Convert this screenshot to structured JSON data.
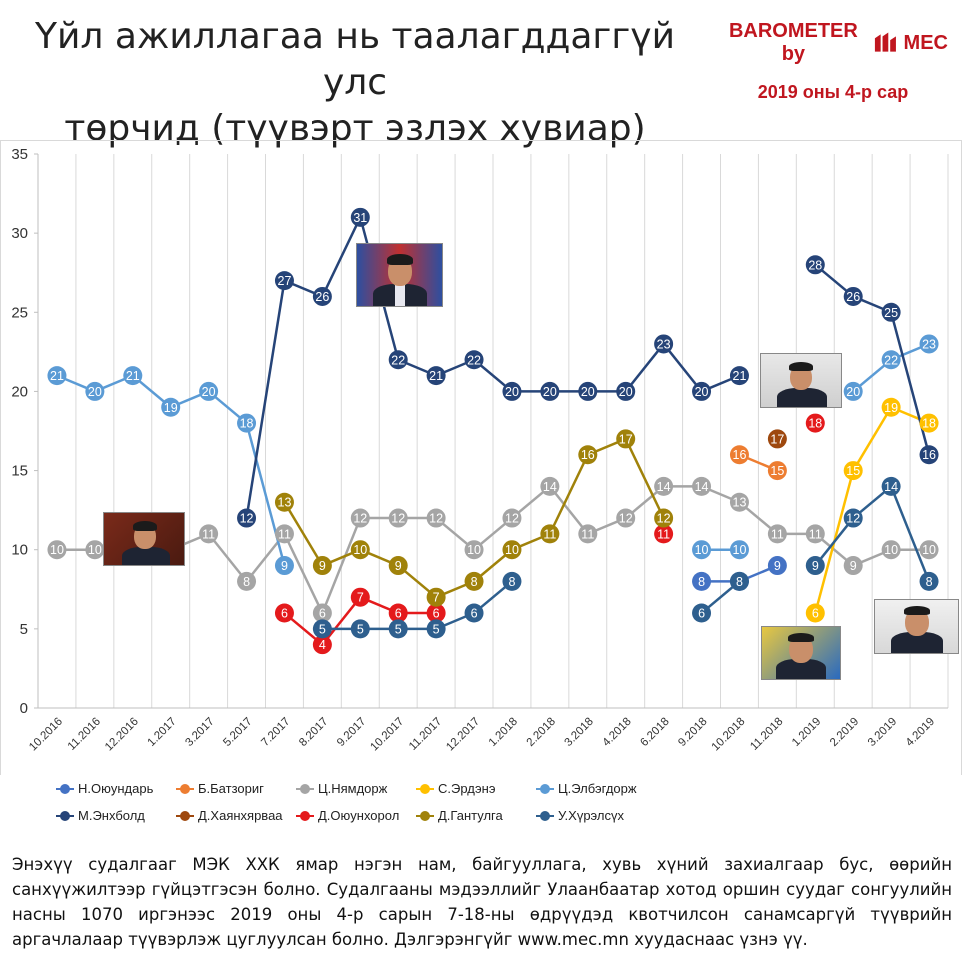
{
  "title_line1": "Үйл ажиллагаа нь таалагддаггүй улс",
  "title_line2": "төрчид (түүвэрт эзлэх хувиар)",
  "brand": "BAROMETER by",
  "brand_mark": "MEC",
  "subtitle": "2019 оны 4-р сар",
  "footnote": "Энэхүү судалгааг МЭК ХХК ямар нэгэн нам, байгууллага, хувь хүний захиалгаар бус, өөрийн санхүүжилтээр гүйцэтгэсэн болно. Судалгааны мэдээллийг Улаанбаатар хотод оршин суудаг сонгуулийн насны 1070 иргэнээс 2019 оны 4-р сарын 7-18-ны өдрүүдэд квотчилсон санамсаргүй түүврийн аргачлалаар түүвэрлэж цуглуулсан болно. Дэлгэрэнгүйг www.mec.mn хуудаснаас үзнэ үү.",
  "chart_data": {
    "type": "line",
    "categories": [
      "10.2016",
      "11.2016",
      "12.2016",
      "1.2017",
      "3.2017",
      "5.2017",
      "7.2017",
      "8.2017",
      "9.2017",
      "10.2017",
      "11.2017",
      "12.2017",
      "1.2018",
      "2.2018",
      "3.2018",
      "4.2018",
      "6.2018",
      "9.2018",
      "10.2018",
      "11.2018",
      "1.2019",
      "2.2019",
      "3.2019",
      "4.2019"
    ],
    "ylim": [
      0,
      35
    ],
    "yticks": [
      0,
      5,
      10,
      15,
      20,
      25,
      30,
      35
    ],
    "grid": "vertical",
    "legend_position": "bottom",
    "series": [
      {
        "name": "Н.Оюундарь",
        "color": "#4472c4",
        "values": [
          null,
          null,
          null,
          null,
          null,
          null,
          null,
          null,
          null,
          null,
          null,
          null,
          null,
          null,
          null,
          null,
          null,
          8,
          8,
          9,
          null,
          null,
          null,
          null
        ]
      },
      {
        "name": "Б.Батзориг",
        "color": "#ed7d31",
        "values": [
          null,
          null,
          null,
          null,
          null,
          null,
          null,
          null,
          null,
          null,
          null,
          null,
          null,
          null,
          null,
          null,
          null,
          null,
          16,
          15,
          null,
          null,
          null,
          null
        ]
      },
      {
        "name": "Ц.Нямдорж",
        "color": "#a5a5a5",
        "values": [
          10,
          10,
          null,
          10,
          11,
          8,
          11,
          6,
          12,
          12,
          12,
          10,
          12,
          14,
          11,
          12,
          14,
          14,
          13,
          11,
          11,
          9,
          10,
          10
        ]
      },
      {
        "name": "С.Эрдэнэ",
        "color": "#ffc000",
        "values": [
          null,
          null,
          null,
          null,
          null,
          null,
          null,
          null,
          null,
          null,
          null,
          null,
          null,
          null,
          null,
          null,
          null,
          null,
          null,
          null,
          6,
          15,
          19,
          18
        ]
      },
      {
        "name": "Ц.Элбэгдорж",
        "color": "#5b9bd5",
        "values": [
          21,
          20,
          21,
          19,
          20,
          18,
          9,
          null,
          null,
          null,
          null,
          null,
          null,
          null,
          null,
          null,
          null,
          10,
          10,
          null,
          null,
          20,
          22,
          23
        ]
      },
      {
        "name": "М.Энхболд",
        "color": "#264478",
        "values": [
          null,
          null,
          null,
          null,
          null,
          12,
          27,
          26,
          31,
          22,
          21,
          22,
          20,
          20,
          20,
          20,
          23,
          20,
          21,
          null,
          28,
          26,
          25,
          16
        ]
      },
      {
        "name": "Д.Хаянхярваа",
        "color": "#9e480e",
        "values": [
          null,
          null,
          null,
          null,
          null,
          null,
          null,
          null,
          null,
          null,
          null,
          null,
          null,
          null,
          null,
          null,
          null,
          null,
          null,
          17,
          null,
          null,
          null,
          null
        ]
      },
      {
        "name": "Д.Оюунхорол",
        "color": "#e41a1c",
        "values": [
          null,
          null,
          null,
          null,
          null,
          null,
          6,
          4,
          7,
          6,
          6,
          null,
          null,
          null,
          null,
          null,
          11,
          null,
          null,
          null,
          18,
          null,
          null,
          null
        ]
      },
      {
        "name": "Д.Гантулга",
        "color": "#a0820a",
        "values": [
          null,
          null,
          null,
          null,
          null,
          null,
          13,
          9,
          10,
          9,
          7,
          8,
          10,
          11,
          16,
          17,
          12,
          null,
          null,
          null,
          null,
          null,
          null,
          null
        ]
      },
      {
        "name": "У.Хүрэлсүх",
        "color": "#2e5f8e",
        "values": [
          null,
          null,
          null,
          null,
          null,
          null,
          null,
          5,
          5,
          5,
          5,
          6,
          8,
          null,
          null,
          null,
          null,
          6,
          8,
          null,
          9,
          12,
          14,
          8
        ]
      }
    ]
  }
}
